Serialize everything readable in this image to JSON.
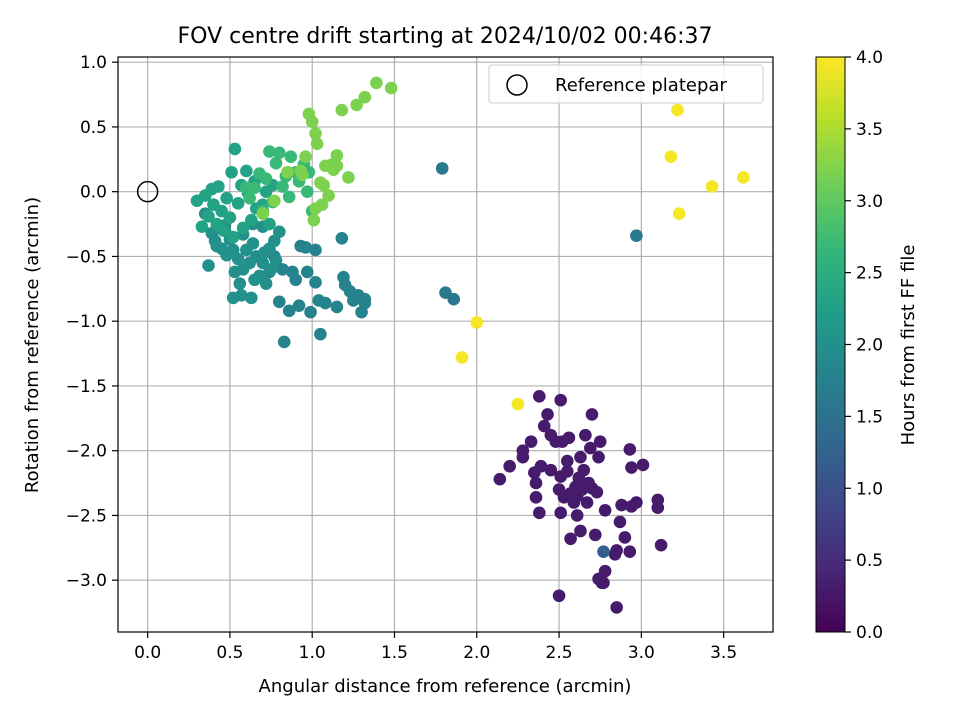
{
  "chart_data": {
    "type": "scatter",
    "title": "FOV centre drift starting at 2024/10/02 00:46:37",
    "xlabel": "Angular distance from reference (arcmin)",
    "ylabel": "Rotation from reference (arcmin)",
    "xlim": [
      -0.18,
      3.8
    ],
    "ylim": [
      -3.4,
      1.04
    ],
    "xticks": [
      0.0,
      0.5,
      1.0,
      1.5,
      2.0,
      2.5,
      3.0,
      3.5
    ],
    "xtick_labels": [
      "0.0",
      "0.5",
      "1.0",
      "1.5",
      "2.0",
      "2.5",
      "3.0",
      "3.5"
    ],
    "yticks": [
      1.0,
      0.5,
      0.0,
      -0.5,
      -1.0,
      -1.5,
      -2.0,
      -2.5,
      -3.0
    ],
    "ytick_labels": [
      "1.0",
      "0.5",
      "0.0",
      "−0.5",
      "−1.0",
      "−1.5",
      "−2.0",
      "−2.5",
      "−3.0"
    ],
    "grid": true,
    "legend": {
      "placement": "upper right",
      "entries": [
        "Reference platepar"
      ]
    },
    "reference_point": {
      "x": 0.0,
      "y": 0.0,
      "label": "Reference platepar"
    },
    "colorbar": {
      "label": "Hours from first FF file",
      "colormap": "viridis",
      "range": [
        0.0,
        4.0
      ],
      "ticks": [
        "0.0",
        "0.5",
        "1.0",
        "1.5",
        "2.0",
        "2.5",
        "3.0",
        "3.5",
        "4.0"
      ]
    },
    "colormap_stops": [
      "#440154",
      "#482878",
      "#3e4989",
      "#31688e",
      "#26828e",
      "#1f9e89",
      "#35b779",
      "#6ece58",
      "#b5de2b",
      "#fde725"
    ],
    "series": [
      {
        "hours": 0.3,
        "points": [
          [
            2.14,
            -2.22
          ],
          [
            2.2,
            -2.12
          ],
          [
            2.28,
            -2.0
          ],
          [
            2.28,
            -2.05
          ],
          [
            2.33,
            -1.93
          ],
          [
            2.35,
            -2.17
          ],
          [
            2.36,
            -2.25
          ],
          [
            2.36,
            -2.36
          ],
          [
            2.38,
            -2.48
          ],
          [
            2.39,
            -2.12
          ],
          [
            2.38,
            -1.58
          ],
          [
            2.41,
            -1.81
          ],
          [
            2.43,
            -1.72
          ],
          [
            2.45,
            -1.88
          ],
          [
            2.45,
            -2.15
          ],
          [
            2.48,
            -1.93
          ],
          [
            2.5,
            -2.3
          ],
          [
            2.51,
            -2.2
          ],
          [
            2.51,
            -1.61
          ],
          [
            2.51,
            -2.48
          ],
          [
            2.52,
            -1.93
          ],
          [
            2.53,
            -2.36
          ],
          [
            2.55,
            -2.08
          ],
          [
            2.55,
            -2.16
          ],
          [
            2.56,
            -1.9
          ],
          [
            2.57,
            -2.33
          ],
          [
            2.57,
            -2.68
          ],
          [
            2.59,
            -2.4
          ],
          [
            2.6,
            -2.28
          ],
          [
            2.61,
            -2.35
          ],
          [
            2.61,
            -2.5
          ],
          [
            2.62,
            -2.21
          ],
          [
            2.63,
            -2.62
          ],
          [
            2.63,
            -2.05
          ],
          [
            2.64,
            -2.3
          ],
          [
            2.65,
            -2.15
          ],
          [
            2.66,
            -1.88
          ],
          [
            2.67,
            -2.4
          ],
          [
            2.68,
            -2.25
          ],
          [
            2.69,
            -1.98
          ],
          [
            2.7,
            -1.72
          ],
          [
            2.7,
            -2.29
          ],
          [
            2.72,
            -2.65
          ],
          [
            2.73,
            -2.32
          ],
          [
            2.74,
            -2.05
          ],
          [
            2.74,
            -2.99
          ],
          [
            2.75,
            -1.93
          ],
          [
            2.76,
            -3.02
          ],
          [
            2.77,
            -3.02
          ],
          [
            2.78,
            -2.46
          ],
          [
            2.78,
            -2.93
          ],
          [
            2.84,
            -2.8
          ],
          [
            2.85,
            -2.77
          ],
          [
            2.88,
            -2.42
          ],
          [
            2.87,
            -2.55
          ],
          [
            2.9,
            -2.67
          ],
          [
            2.94,
            -2.43
          ],
          [
            2.94,
            -2.13
          ],
          [
            2.93,
            -1.99
          ],
          [
            2.93,
            -2.78
          ],
          [
            2.97,
            -2.4
          ],
          [
            3.01,
            -2.11
          ],
          [
            3.1,
            -2.38
          ],
          [
            3.1,
            -2.44
          ],
          [
            3.12,
            -2.73
          ],
          [
            2.85,
            -3.21
          ],
          [
            2.5,
            -3.12
          ]
        ]
      },
      {
        "hours": 1.2,
        "points": [
          [
            2.77,
            -2.78
          ]
        ]
      },
      {
        "hours": 1.6,
        "points": [
          [
            1.79,
            0.18
          ],
          [
            1.81,
            -0.78
          ],
          [
            1.86,
            -0.83
          ],
          [
            2.97,
            -0.34
          ]
        ]
      },
      {
        "hours": 1.8,
        "points": [
          [
            0.8,
            -0.85
          ],
          [
            0.83,
            -1.16
          ],
          [
            0.86,
            -0.92
          ],
          [
            0.9,
            -0.68
          ],
          [
            0.92,
            -0.88
          ],
          [
            0.97,
            -0.62
          ],
          [
            0.99,
            -0.93
          ],
          [
            1.02,
            -0.7
          ],
          [
            1.04,
            -0.84
          ],
          [
            1.05,
            -1.1
          ],
          [
            1.08,
            -0.86
          ],
          [
            1.15,
            -0.89
          ],
          [
            1.18,
            -0.36
          ],
          [
            1.19,
            -0.66
          ],
          [
            1.2,
            -0.72
          ],
          [
            1.23,
            -0.77
          ],
          [
            1.25,
            -0.84
          ],
          [
            1.28,
            -0.8
          ],
          [
            1.3,
            -0.93
          ],
          [
            1.32,
            -0.83
          ],
          [
            1.32,
            -0.86
          ],
          [
            0.96,
            -0.43
          ],
          [
            1.02,
            -0.45
          ],
          [
            0.82,
            -0.6
          ],
          [
            0.77,
            -0.5
          ],
          [
            0.88,
            -0.62
          ],
          [
            0.93,
            -0.42
          ],
          [
            0.74,
            -0.62
          ]
        ]
      },
      {
        "hours": 2.0,
        "points": [
          [
            0.37,
            -0.57
          ],
          [
            0.39,
            -0.32
          ],
          [
            0.41,
            -0.38
          ],
          [
            0.43,
            -0.28
          ],
          [
            0.45,
            -0.44
          ],
          [
            0.47,
            -0.3
          ],
          [
            0.48,
            -0.49
          ],
          [
            0.5,
            -0.37
          ],
          [
            0.52,
            -0.45
          ],
          [
            0.53,
            -0.62
          ],
          [
            0.55,
            -0.52
          ],
          [
            0.56,
            -0.71
          ],
          [
            0.57,
            -0.8
          ],
          [
            0.58,
            -0.6
          ],
          [
            0.6,
            -0.45
          ],
          [
            0.62,
            -0.55
          ],
          [
            0.63,
            -0.82
          ],
          [
            0.64,
            -0.4
          ],
          [
            0.65,
            -0.68
          ],
          [
            0.66,
            -0.5
          ],
          [
            0.68,
            -0.65
          ],
          [
            0.7,
            -0.55
          ],
          [
            0.71,
            -0.47
          ],
          [
            0.72,
            -0.71
          ],
          [
            0.74,
            -0.44
          ],
          [
            0.75,
            -0.6
          ],
          [
            0.77,
            -0.38
          ],
          [
            0.78,
            -0.53
          ],
          [
            0.8,
            -0.31
          ],
          [
            0.52,
            -0.82
          ],
          [
            0.47,
            -0.26
          ],
          [
            0.58,
            -0.33
          ],
          [
            0.64,
            -0.25
          ],
          [
            0.7,
            -0.27
          ],
          [
            0.35,
            -0.17
          ],
          [
            0.42,
            -0.42
          ]
        ]
      },
      {
        "hours": 2.3,
        "points": [
          [
            0.3,
            -0.07
          ],
          [
            0.33,
            -0.27
          ],
          [
            0.35,
            -0.03
          ],
          [
            0.37,
            -0.19
          ],
          [
            0.39,
            0.02
          ],
          [
            0.4,
            -0.1
          ],
          [
            0.42,
            -0.25
          ],
          [
            0.43,
            0.04
          ],
          [
            0.45,
            -0.15
          ],
          [
            0.46,
            -0.3
          ],
          [
            0.48,
            -0.05
          ],
          [
            0.5,
            -0.2
          ],
          [
            0.51,
            0.15
          ],
          [
            0.52,
            -0.35
          ],
          [
            0.53,
            0.33
          ],
          [
            0.55,
            -0.09
          ],
          [
            0.57,
            0.05
          ],
          [
            0.58,
            -0.28
          ],
          [
            0.6,
            0.16
          ],
          [
            0.61,
            -0.01
          ],
          [
            0.63,
            -0.22
          ],
          [
            0.65,
            0.08
          ],
          [
            0.66,
            -0.13
          ],
          [
            0.68,
            0.12
          ],
          [
            0.7,
            -0.1
          ],
          [
            0.72,
            0.0
          ],
          [
            0.74,
            -0.25
          ],
          [
            0.76,
            0.05
          ]
        ]
      },
      {
        "hours": 2.7,
        "points": [
          [
            0.6,
            0.03
          ],
          [
            0.62,
            -0.05
          ],
          [
            0.65,
            0.03
          ],
          [
            0.68,
            0.14
          ],
          [
            0.7,
            -0.15
          ],
          [
            0.72,
            0.1
          ],
          [
            0.74,
            0.31
          ],
          [
            0.76,
            -0.08
          ],
          [
            0.78,
            0.22
          ],
          [
            0.8,
            0.3
          ],
          [
            0.82,
            0.04
          ],
          [
            0.84,
            0.12
          ],
          [
            0.86,
            -0.04
          ],
          [
            0.87,
            0.27
          ],
          [
            0.9,
            0.15
          ],
          [
            0.92,
            0.08
          ],
          [
            0.95,
            0.21
          ],
          [
            0.97,
            0.0
          ],
          [
            0.98,
            0.15
          ],
          [
            1.0,
            -0.15
          ]
        ]
      },
      {
        "hours": 3.2,
        "points": [
          [
            0.7,
            -0.17
          ],
          [
            0.77,
            -0.07
          ],
          [
            0.85,
            0.15
          ],
          [
            0.93,
            0.16
          ],
          [
            0.96,
            0.27
          ],
          [
            0.98,
            0.6
          ],
          [
            1.0,
            0.54
          ],
          [
            1.02,
            0.45
          ],
          [
            1.03,
            0.37
          ],
          [
            1.01,
            -0.22
          ],
          [
            1.02,
            -0.13
          ],
          [
            1.05,
            0.07
          ],
          [
            1.06,
            -0.1
          ],
          [
            1.08,
            0.2
          ],
          [
            1.1,
            -0.03
          ],
          [
            1.12,
            0.21
          ],
          [
            1.13,
            0.17
          ],
          [
            1.15,
            0.2
          ],
          [
            1.18,
            0.63
          ],
          [
            1.22,
            0.11
          ],
          [
            1.27,
            0.67
          ],
          [
            1.32,
            0.73
          ],
          [
            1.39,
            0.84
          ],
          [
            1.48,
            0.8
          ],
          [
            1.15,
            0.28
          ],
          [
            1.07,
            0.05
          ],
          [
            0.94,
            0.13
          ]
        ]
      },
      {
        "hours": 3.95,
        "points": [
          [
            1.91,
            -1.28
          ],
          [
            2.0,
            -1.01
          ],
          [
            2.25,
            -1.64
          ],
          [
            3.18,
            0.27
          ],
          [
            3.22,
            0.63
          ],
          [
            3.23,
            -0.17
          ],
          [
            3.43,
            0.04
          ],
          [
            3.62,
            0.11
          ]
        ]
      }
    ]
  }
}
